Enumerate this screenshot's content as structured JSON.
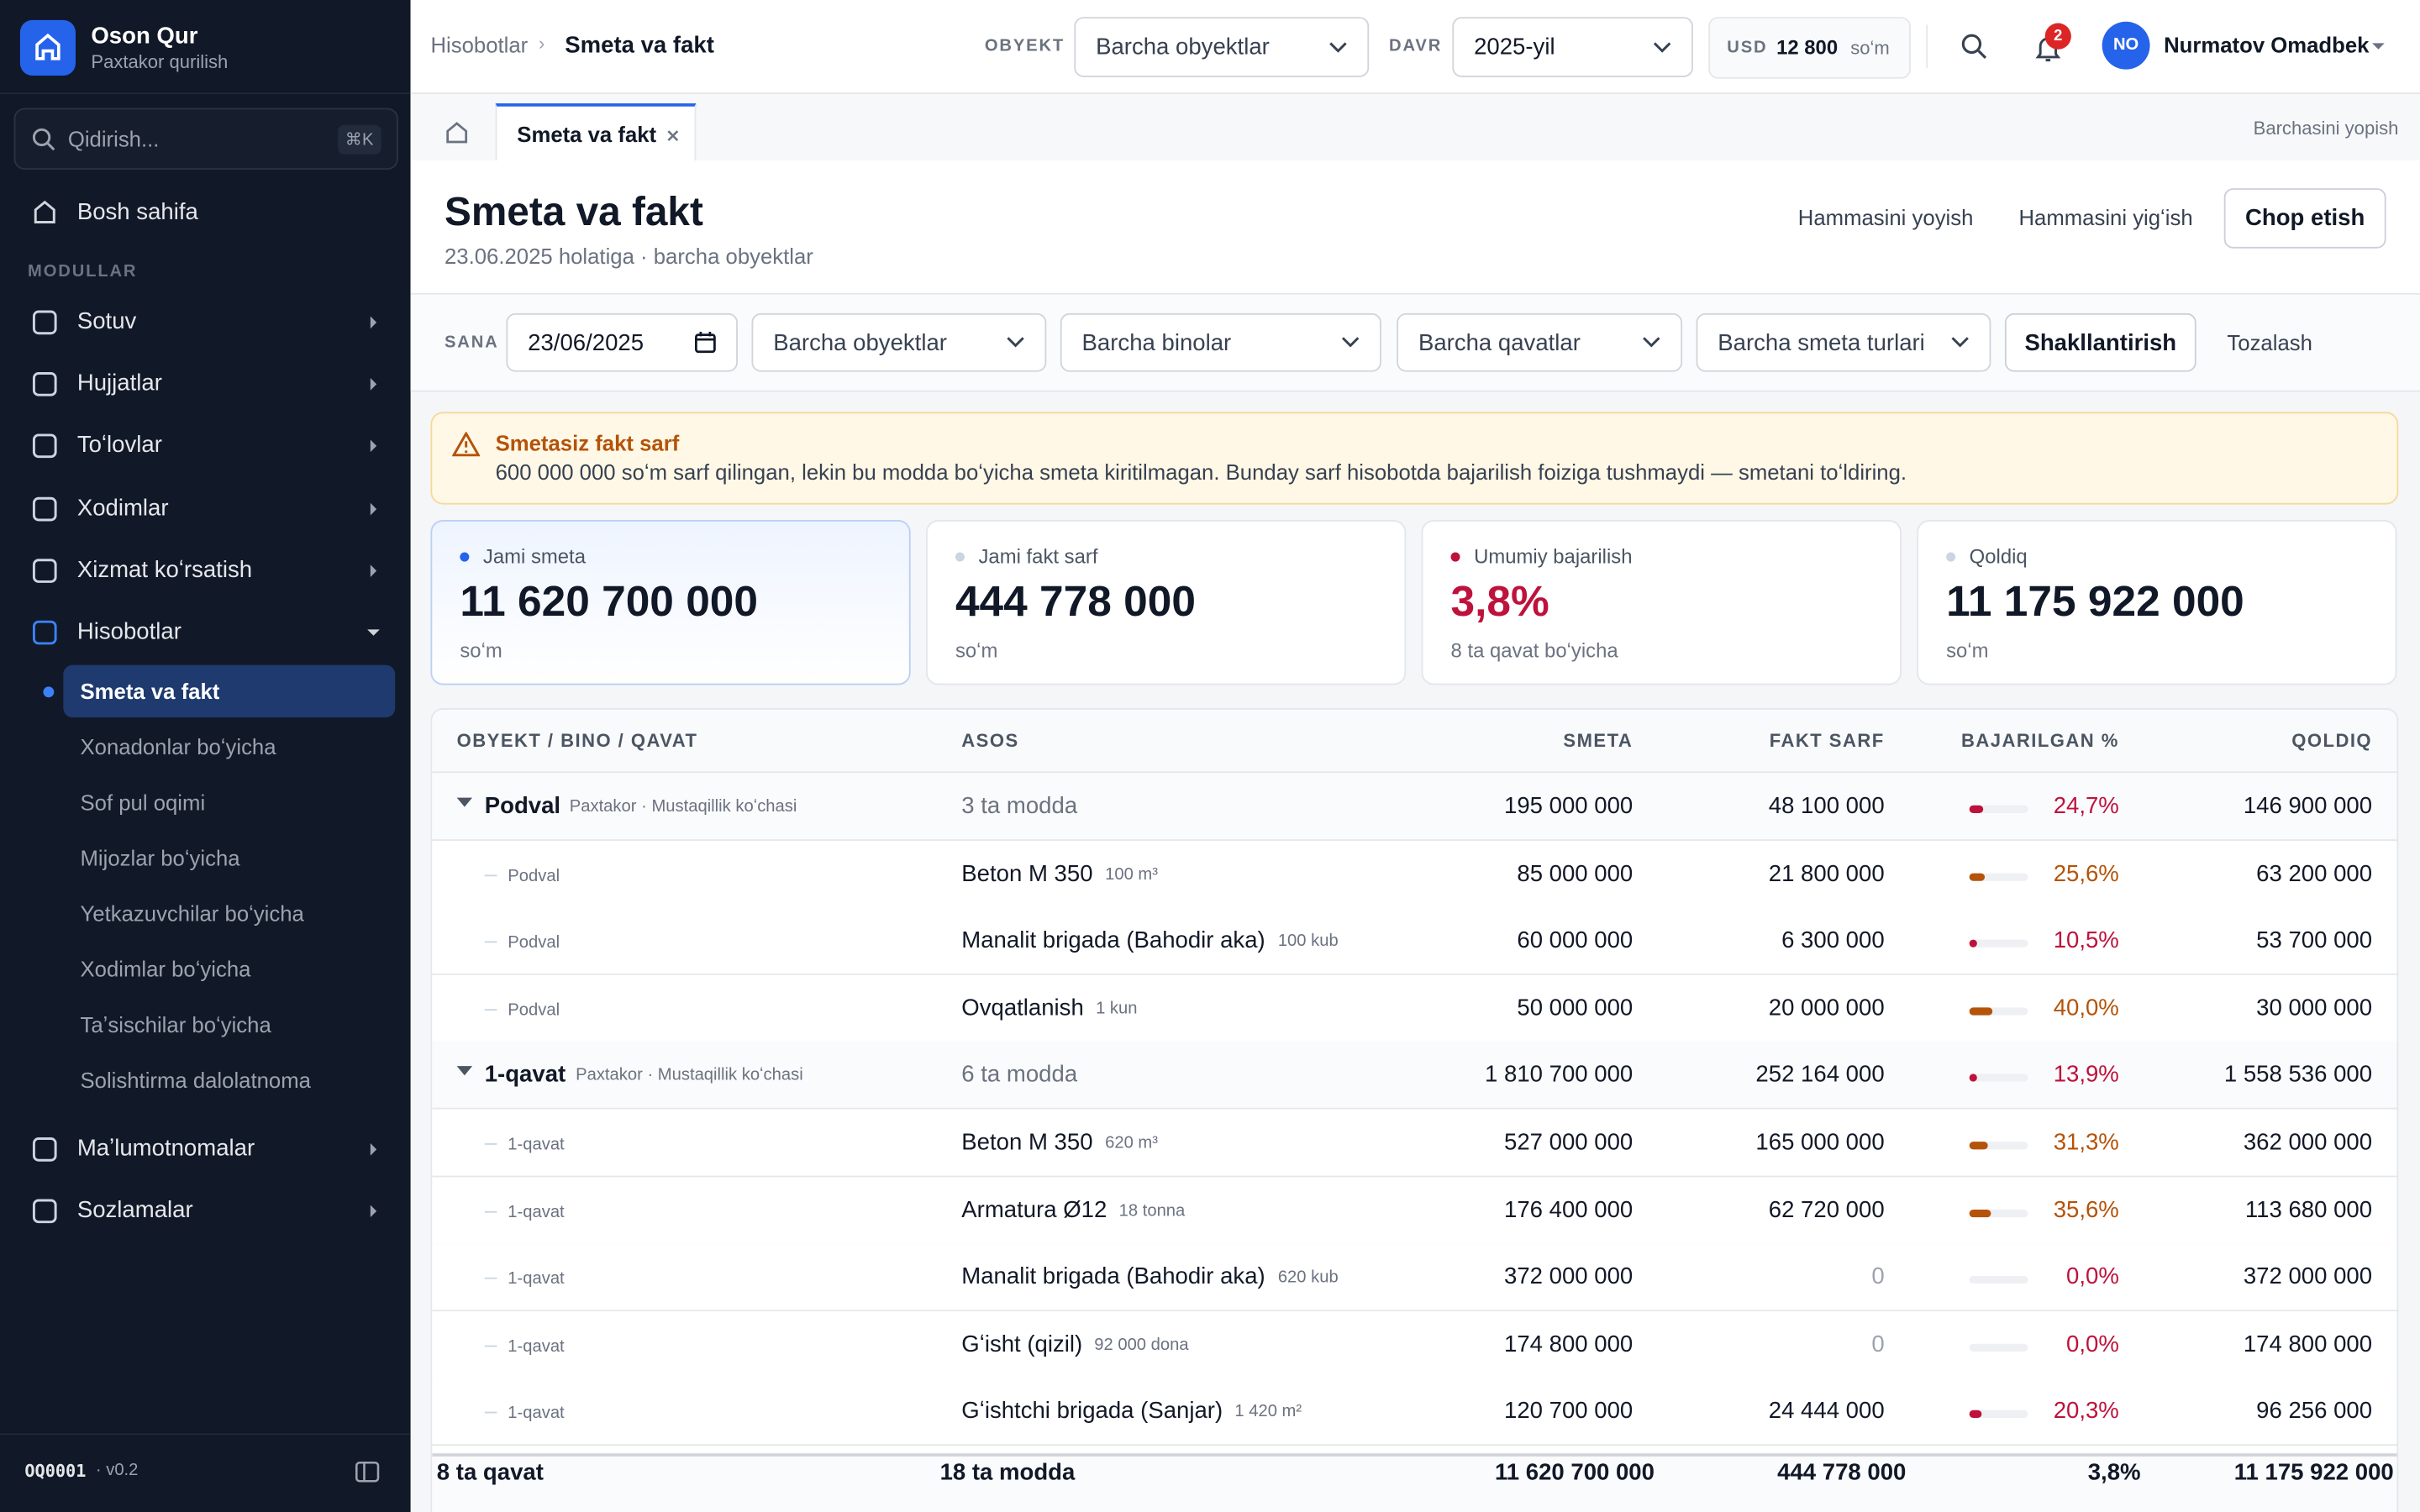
{
  "sidebar": {
    "brand": {
      "name": "Oson Qur",
      "sub": "Paxtakor qurilish"
    },
    "search": {
      "placeholder": "Qidirish...",
      "shortcut": "⌘K"
    },
    "home": "Bosh sahifa",
    "section": "MODULLAR",
    "menu": [
      "Sotuv",
      "Hujjatlar",
      "Toʻlovlar",
      "Xodimlar",
      "Xizmat koʻrsatish",
      "Hisobotlar"
    ],
    "submenu": [
      "Smeta va fakt",
      "Xonadonlar boʻyicha",
      "Sof pul oqimi",
      "Mijozlar boʻyicha",
      "Yetkazuvchilar boʻyicha",
      "Xodimlar boʻyicha",
      "Taʼsischilar boʻyicha",
      "Solishtirma dalolatnoma"
    ],
    "menu_bottom": [
      "Maʼlumotnomalar",
      "Sozlamalar"
    ],
    "footer": {
      "code": "OQ0001",
      "version": "· v0.2"
    }
  },
  "topbar": {
    "breadcrumb": [
      "Hisobotlar",
      "Smeta va fakt"
    ],
    "object_label": "OBYEKT",
    "object_value": "Barcha obyektlar",
    "period_label": "DAVR",
    "period_value": "2025-yil",
    "currency": {
      "code": "USD",
      "rate": "12 800",
      "unit": "soʻm"
    },
    "notifications": "2",
    "avatar": "NO",
    "user": "Nurmatov Omadbek"
  },
  "tabs": {
    "active": "Smeta va fakt",
    "close_all": "Barchasini yopish"
  },
  "header": {
    "title": "Smeta va fakt",
    "subtitle": "23.06.2025 holatiga · barcha obyektlar",
    "actions": [
      "Hammasini yoyish",
      "Hammasini yigʻish"
    ],
    "print": "Chop etish"
  },
  "filters": {
    "date_label": "SANA",
    "date": "23/06/2025",
    "selects": [
      "Barcha obyektlar",
      "Barcha binolar",
      "Barcha qavatlar",
      "Barcha smeta turlari"
    ],
    "submit": "Shakllantirish",
    "reset": "Tozalash"
  },
  "alert": {
    "title": "Smetasiz fakt sarf",
    "text": "600 000 000 soʻm sarf qilingan, lekin bu modda boʻyicha smeta kiritilmagan. Bunday sarf hisobotda bajarilish foiziga tushmaydi — smetani toʻldiring."
  },
  "cards": [
    {
      "label": "Jami smeta",
      "value": "11 620 700 000",
      "unit": "soʻm"
    },
    {
      "label": "Jami fakt sarf",
      "value": "444 778 000",
      "unit": "soʻm"
    },
    {
      "label": "Umumiy bajarilish",
      "value": "3,8%",
      "unit": "8 ta qavat boʻyicha"
    },
    {
      "label": "Qoldiq",
      "value": "11 175 922 000",
      "unit": "soʻm"
    }
  ],
  "table": {
    "columns": [
      "OBYEKT / BINO / QAVAT",
      "ASOS",
      "SMETA",
      "FAKT SARF",
      "BAJARILGAN %",
      "QOLDIQ"
    ],
    "groups": [
      {
        "name": "Podval",
        "location": "Paxtakor · Mustaqillik koʻchasi",
        "asos": "3 ta modda",
        "smeta": "195 000 000",
        "fakt": "48 100 000",
        "percent": 24.7,
        "percent_label": "24,7%",
        "qoldiq": "146 900 000",
        "items": [
          {
            "level": "Podval",
            "name": "Beton M 350",
            "unit": "100 m³",
            "smeta": "85 000 000",
            "fakt": "21 800 000",
            "percent": 25.6,
            "percent_label": "25,6%",
            "qoldiq": "63 200 000"
          },
          {
            "level": "Podval",
            "name": "Manalit brigada (Bahodir aka)",
            "unit": "100 kub",
            "smeta": "60 000 000",
            "fakt": "6 300 000",
            "percent": 10.5,
            "percent_label": "10,5%",
            "qoldiq": "53 700 000"
          },
          {
            "level": "Podval",
            "name": "Ovqatlanish",
            "unit": "1 kun",
            "smeta": "50 000 000",
            "fakt": "20 000 000",
            "percent": 40.0,
            "percent_label": "40,0%",
            "qoldiq": "30 000 000"
          }
        ]
      },
      {
        "name": "1-qavat",
        "location": "Paxtakor · Mustaqillik koʻchasi",
        "asos": "6 ta modda",
        "smeta": "1 810 700 000",
        "fakt": "252 164 000",
        "percent": 13.9,
        "percent_label": "13,9%",
        "qoldiq": "1 558 536 000",
        "items": [
          {
            "level": "1-qavat",
            "name": "Beton M 350",
            "unit": "620 m³",
            "smeta": "527 000 000",
            "fakt": "165 000 000",
            "percent": 31.3,
            "percent_label": "31,3%",
            "qoldiq": "362 000 000"
          },
          {
            "level": "1-qavat",
            "name": "Armatura Ø12",
            "unit": "18 tonna",
            "smeta": "176 400 000",
            "fakt": "62 720 000",
            "percent": 35.6,
            "percent_label": "35,6%",
            "qoldiq": "113 680 000"
          },
          {
            "level": "1-qavat",
            "name": "Manalit brigada (Bahodir aka)",
            "unit": "620 kub",
            "smeta": "372 000 000",
            "fakt": "0",
            "percent": 0,
            "percent_label": "0,0%",
            "qoldiq": "372 000 000"
          },
          {
            "level": "1-qavat",
            "name": "Gʻisht (qizil)",
            "unit": "92 000 dona",
            "smeta": "174 800 000",
            "fakt": "0",
            "percent": 0,
            "percent_label": "0,0%",
            "qoldiq": "174 800 000"
          },
          {
            "level": "1-qavat",
            "name": "Gʻishtchi brigada (Sanjar)",
            "unit": "1 420 m²",
            "smeta": "120 700 000",
            "fakt": "24 444 000",
            "percent": 20.3,
            "percent_label": "20,3%",
            "qoldiq": "96 256 000"
          }
        ]
      }
    ],
    "footer": [
      "8 ta qavat",
      "18 ta modda",
      "11 620 700 000",
      "444 778 000",
      "3,8%",
      "11 175 922 000"
    ]
  }
}
